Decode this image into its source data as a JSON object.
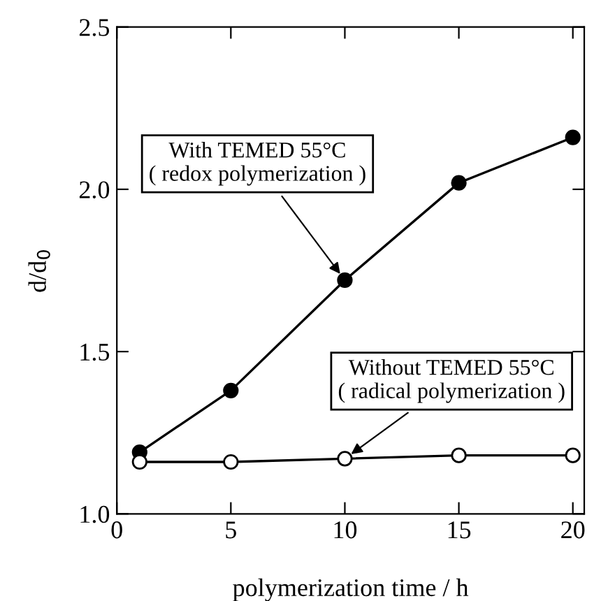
{
  "chart_data": {
    "type": "line",
    "xlabel": "polymerization time / h",
    "ylabel": "d/d$_{0}$",
    "x": [
      1,
      5,
      10,
      15,
      20
    ],
    "series": [
      {
        "color": "#000000",
        "marker": "circle",
        "values": [
          1.19,
          1.38,
          1.72,
          2.02,
          2.16
        ]
      },
      {
        "color": "#000000",
        "marker": "circle",
        "values": [
          1.16,
          1.16,
          1.17,
          1.18,
          1.18
        ]
      }
    ],
    "annotations": [
      {
        "text": "With TEMED 55°C\n( redox polymerization )",
        "x": 10,
        "y": 1.72
      },
      {
        "text": "Without TEMED 55°C\n( radical polymerization )",
        "x": 10,
        "y": 1.17
      }
    ],
    "xlim": [
      0,
      20.5
    ],
    "xticks": [
      0,
      5,
      10,
      15,
      20
    ],
    "ylim": [
      1.0,
      2.5
    ],
    "yticks": [
      {
        "value": 1,
        "label": "1.0"
      },
      1.5,
      {
        "value": 2,
        "label": "2.0"
      },
      2.5
    ],
    "grid": false,
    "legend": false
  }
}
